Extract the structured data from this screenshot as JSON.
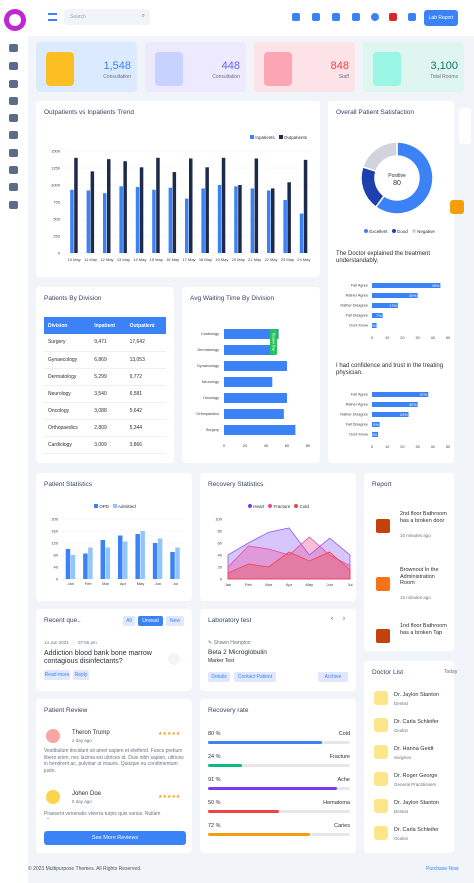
{
  "topbar": {
    "search_placeholder": "Search",
    "lab_button": "Lab Report"
  },
  "stats": [
    {
      "value": "1,548",
      "label": "Consultation",
      "bg": "#dbeafe"
    },
    {
      "value": "448",
      "label": "Consultation",
      "bg": "#ede9fe"
    },
    {
      "value": "848",
      "label": "Staff",
      "bg": "#fde2e7"
    },
    {
      "value": "3,100",
      "label": "Total Rooms",
      "bg": "#dff5ef"
    }
  ],
  "trend": {
    "title": "Outpatients vs Inpatients Trend",
    "legend": [
      "Inpatients",
      "Outpatients"
    ],
    "chart_data": {
      "type": "bar",
      "categories": [
        "10 May",
        "11 May",
        "12 May",
        "13 May",
        "14 May",
        "15 May",
        "16 May",
        "17 May",
        "18 May",
        "19 May",
        "20 May",
        "21 May",
        "22 May",
        "23 May",
        "24 May"
      ],
      "ylim": [
        0,
        1500
      ],
      "yticks": [
        "1500",
        "1250",
        "1000",
        "750",
        "500",
        "250",
        "0"
      ],
      "series": [
        {
          "name": "Inpatients",
          "values": [
            930,
            920,
            880,
            980,
            970,
            930,
            960,
            800,
            950,
            1000,
            980,
            950,
            920,
            780,
            580
          ]
        },
        {
          "name": "Outpatients",
          "values": [
            1400,
            1200,
            1380,
            1350,
            1260,
            1400,
            1190,
            1390,
            1260,
            1400,
            1000,
            1390,
            950,
            1040,
            1370
          ]
        }
      ]
    }
  },
  "satisfaction": {
    "title": "Overall Patient Satisfaction",
    "center_label": "Positive",
    "center_value": "80",
    "legend": [
      "Excellent",
      "Good",
      "Negative"
    ],
    "chart_data": {
      "type": "pie",
      "labels": [
        "Excellent",
        "Good",
        "Negative"
      ],
      "values": [
        60,
        20,
        20
      ]
    },
    "q1": "The Doctor explained the treatment understandably.",
    "q1_rows": [
      {
        "label": "Fall Agree",
        "value": "45%",
        "pct": 45
      },
      {
        "label": "Rather Agree",
        "value": "30%",
        "pct": 30
      },
      {
        "label": "Rather Disagree",
        "value": "17%",
        "pct": 17
      },
      {
        "label": "Fall Disagree",
        "value": "7%",
        "pct": 7
      },
      {
        "label": "Dont Know",
        "value": "3%",
        "pct": 3
      }
    ],
    "q2": "I had confidence and trust in the treating physician.",
    "q2_rows": [
      {
        "label": "Fall Agree",
        "value": "37%",
        "pct": 37
      },
      {
        "label": "Rather Agree",
        "value": "30%",
        "pct": 30
      },
      {
        "label": "Rather Disagree",
        "value": "24%",
        "pct": 24
      },
      {
        "label": "Fall Disagree",
        "value": "5%",
        "pct": 5
      },
      {
        "label": "Dont Know",
        "value": "4%",
        "pct": 4
      }
    ],
    "axis": [
      "0",
      "10",
      "20",
      "30",
      "40",
      "50"
    ]
  },
  "division": {
    "title": "Patients By Division",
    "headers": [
      "Division",
      "Inpatient",
      "Outpatient"
    ],
    "rows": [
      [
        "Surgery",
        "9,471",
        "17,642"
      ],
      [
        "Gynaecology",
        "6,869",
        "13,053"
      ],
      [
        "Dermatology",
        "5,299",
        "9,772"
      ],
      [
        "Neurology",
        "3,540",
        "6,581"
      ],
      [
        "Oncology",
        "3,088",
        "5,642"
      ],
      [
        "Orthopaedics",
        "2,809",
        "5,344"
      ],
      [
        "Cardiology",
        "3,009",
        "3,866"
      ]
    ]
  },
  "waiting": {
    "title": "Avg Waiting Time By Division",
    "tag": "Avg waiting",
    "chart_data": {
      "type": "bar",
      "categories": [
        "Cardiology",
        "Dermatology",
        "Gynaecology",
        "Neurology",
        "Oncology",
        "Orthopaedics",
        "Surgery"
      ],
      "values": [
        52,
        47,
        60,
        46,
        60,
        57,
        68
      ],
      "xlim": [
        0,
        80
      ]
    },
    "xticks": [
      "0",
      "20",
      "40",
      "60",
      "80"
    ]
  },
  "pstats": {
    "title": "Patient Statistics",
    "legend": [
      "OPD",
      "Admitted"
    ],
    "chart_data": {
      "type": "bar",
      "categories": [
        "Jan",
        "Feb",
        "Mar",
        "Apr",
        "May",
        "Jun",
        "Jul"
      ],
      "ylim": [
        0,
        200
      ],
      "series": [
        {
          "name": "OPD",
          "values": [
            100,
            85,
            130,
            145,
            150,
            120,
            90
          ]
        },
        {
          "name": "Admitted",
          "values": [
            80,
            105,
            105,
            125,
            160,
            135,
            105
          ]
        }
      ]
    },
    "yticks": [
      "200",
      "160",
      "120",
      "80",
      "40",
      "0"
    ]
  },
  "recovery_stats": {
    "title": "Recovery Statistics",
    "legend": [
      "Heart",
      "Fracture",
      "Cold"
    ],
    "chart_data": {
      "type": "area",
      "categories": [
        "Jan",
        "Feb",
        "Mar",
        "Apr",
        "May",
        "Jun",
        "Jul"
      ],
      "ylim": [
        0,
        100
      ],
      "series": [
        {
          "name": "Heart",
          "values": [
            40,
            60,
            78,
            85,
            40,
            68,
            40
          ]
        },
        {
          "name": "Fracture",
          "values": [
            20,
            55,
            50,
            40,
            70,
            40,
            22
          ]
        },
        {
          "name": "Cold",
          "values": [
            10,
            25,
            20,
            45,
            30,
            45,
            15
          ]
        }
      ]
    },
    "yticks": [
      "100",
      "80",
      "60",
      "40",
      "20",
      "0"
    ]
  },
  "report": {
    "title": "Report",
    "items": [
      {
        "text": "2nd floor Bathroom has a broken door",
        "time": "10 minutes ago"
      },
      {
        "text": "Brownout In the Administration Room",
        "time": "15 minutes ago"
      },
      {
        "text": "1nd floor Bathroom has a broken Tap",
        "time": ""
      }
    ]
  },
  "questions": {
    "title": "Recent que..",
    "tabs": [
      "All",
      "Unread",
      "New"
    ],
    "date": "14 Jun 2021",
    "time": "07:56 pm",
    "question": "Addiction blood bank bone marrow contagious disinfectants?",
    "actions": [
      "Read more",
      "Reply"
    ]
  },
  "lab": {
    "title": "Laboratory test",
    "doctor": "Shawn Hampton",
    "test": "Beta 2 Microglobulin",
    "type": "Marker Test",
    "buttons": [
      "Details",
      "Contact Patient",
      "Archive"
    ]
  },
  "doctors": {
    "title": "Doctor List",
    "today": "Today",
    "items": [
      {
        "name": "Dr. Jaylon Stanton",
        "role": "Dentist"
      },
      {
        "name": "Dr. Carla Schleifer",
        "role": "Oculist"
      },
      {
        "name": "Dr. Hanna Geidt",
        "role": "Surgeon"
      },
      {
        "name": "Dr. Roger George",
        "role": "General Practitioners"
      },
      {
        "name": "Dr. Jaylon Stanton",
        "role": "Dentist"
      },
      {
        "name": "Dr. Carla Schleifer",
        "role": "Oculist"
      }
    ]
  },
  "review": {
    "title": "Patient Review",
    "items": [
      {
        "name": "Theron Trump",
        "time": "2 day ago",
        "text": "Vestibulum tincidunt sit amet sapien et eleifend. Fusce pretium libero enim, nec lacinia est ultrices id. Duis nibh sapien, ultrices in hendrerit ac, pulvinar ut mauris. Quisque eu condimentum justo."
      },
      {
        "name": "Johen Doe",
        "time": "5 day ago",
        "text": "Praesent venenatis viverra turpis quis varius. Nullam ullamcorper congue urna, in."
      }
    ],
    "button": "See More Reviews"
  },
  "recovery_rate": {
    "title": "Recovery rate",
    "items": [
      {
        "pct": "80 %",
        "pv": 80,
        "name": "Cold",
        "color": "#3b82f6"
      },
      {
        "pct": "24 %",
        "pv": 24,
        "name": "Fracture",
        "color": "#10b981"
      },
      {
        "pct": "91 %",
        "pv": 91,
        "name": "Ache",
        "color": "#7c3aed"
      },
      {
        "pct": "50 %",
        "pv": 50,
        "name": "Hematoma",
        "color": "#ef4444"
      },
      {
        "pct": "72 %",
        "pv": 72,
        "name": "Caries",
        "color": "#f59e0b"
      }
    ]
  },
  "footer": {
    "copyright": "© 2023 Multipurpose Themes. All Rights Reserved.",
    "purchase": "Purchase Now"
  }
}
